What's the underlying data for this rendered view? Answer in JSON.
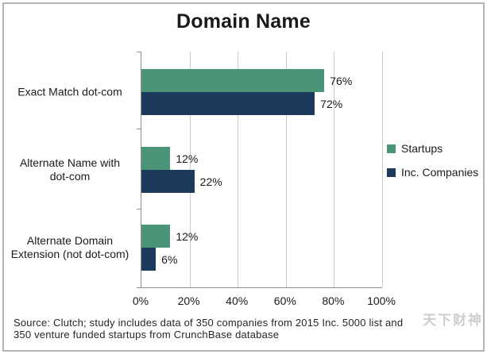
{
  "chart_data": {
    "type": "bar",
    "orientation": "horizontal",
    "title": "Domain Name",
    "categories": [
      "Exact Match dot-com",
      "Alternate Name with dot-com",
      "Alternate Domain Extension (not dot-com)"
    ],
    "categories_display": [
      [
        "Exact Match dot-com"
      ],
      [
        "Alternate Name with",
        "dot-com"
      ],
      [
        "Alternate Domain",
        "Extension (not dot-com)"
      ]
    ],
    "series": [
      {
        "name": "Startups",
        "color": "#4A9478",
        "values": [
          76,
          12,
          12
        ]
      },
      {
        "name": "Inc. Companies",
        "color": "#1C3A5C",
        "values": [
          72,
          22,
          6
        ]
      }
    ],
    "value_labels": [
      [
        "76%",
        "12%",
        "12%"
      ],
      [
        "72%",
        "22%",
        "6%"
      ]
    ],
    "x_ticks": [
      0,
      20,
      40,
      60,
      80,
      100
    ],
    "x_tick_labels": [
      "0%",
      "20%",
      "40%",
      "60%",
      "80%",
      "100%"
    ],
    "xlim": [
      0,
      100
    ],
    "grid": "vertical-gridlines-every-20pct",
    "legend_position": "right"
  },
  "source": {
    "line1": "Source: Clutch; study includes data of 350 companies from 2015 Inc. 5000 list and",
    "line2": "350 venture funded startups from CrunchBase database"
  },
  "watermark": "天下财神",
  "colors": {
    "startups": "#4A9478",
    "inc_companies": "#1C3A5C",
    "gridline": "#C9C9C9",
    "axis": "#8F8F8F",
    "frame_border": "#B5B5B5",
    "text": "#1A1A1A"
  }
}
